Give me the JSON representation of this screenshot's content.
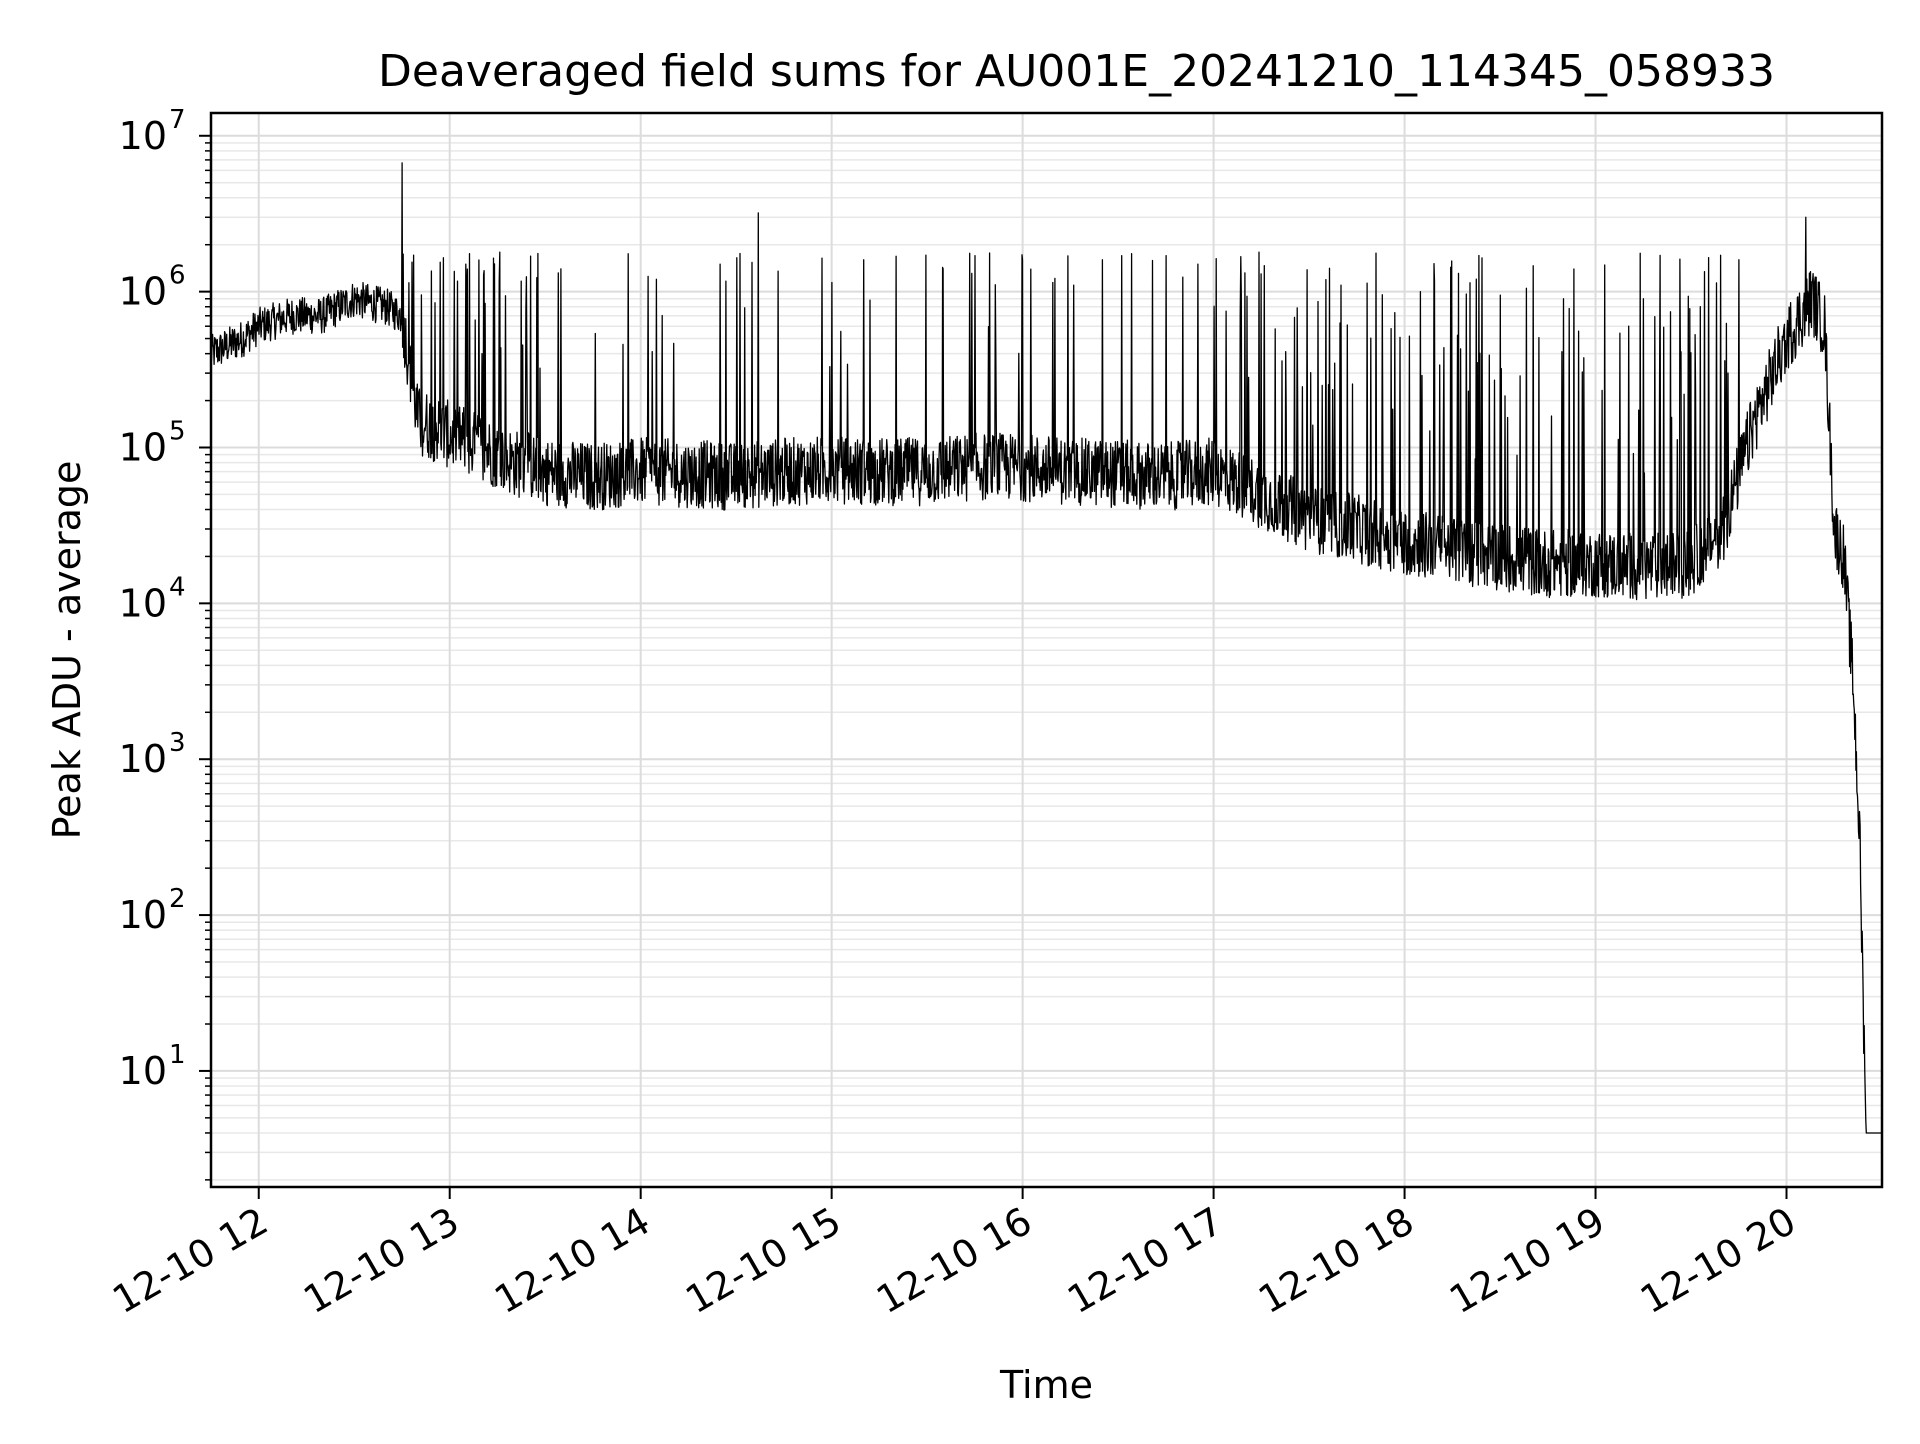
{
  "chart_data": {
    "type": "line",
    "title": "Deaveraged field sums for AU001E_20241210_114345_058933",
    "xlabel": "Time",
    "ylabel": "Peak ADU - average",
    "yscale": "log",
    "ylim": [
      1.8,
      14000000
    ],
    "xlim": [
      "2024-12-10 11:45",
      "2024-12-10 20:30"
    ],
    "grid": true,
    "line_color": "#000000",
    "x_ticks": [
      {
        "value": "2024-12-10 12:00",
        "label": "12-10 12"
      },
      {
        "value": "2024-12-10 13:00",
        "label": "12-10 13"
      },
      {
        "value": "2024-12-10 14:00",
        "label": "12-10 14"
      },
      {
        "value": "2024-12-10 15:00",
        "label": "12-10 15"
      },
      {
        "value": "2024-12-10 16:00",
        "label": "12-10 16"
      },
      {
        "value": "2024-12-10 17:00",
        "label": "12-10 17"
      },
      {
        "value": "2024-12-10 18:00",
        "label": "12-10 18"
      },
      {
        "value": "2024-12-10 19:00",
        "label": "12-10 19"
      },
      {
        "value": "2024-12-10 20:00",
        "label": "12-10 20"
      }
    ],
    "y_ticks": [
      {
        "value": 10,
        "base": "10",
        "exp": "1"
      },
      {
        "value": 100,
        "base": "10",
        "exp": "2"
      },
      {
        "value": 1000,
        "base": "10",
        "exp": "3"
      },
      {
        "value": 10000,
        "base": "10",
        "exp": "4"
      },
      {
        "value": 100000,
        "base": "10",
        "exp": "5"
      },
      {
        "value": 1000000,
        "base": "10",
        "exp": "6"
      },
      {
        "value": 10000000,
        "base": "10",
        "exp": "7"
      }
    ],
    "series": [
      {
        "x": [
          "2024-12-10 11:45",
          "2024-12-10 11:55",
          "2024-12-10 12:00",
          "2024-12-10 12:10",
          "2024-12-10 12:20",
          "2024-12-10 12:30",
          "2024-12-10 12:40",
          "2024-12-10 12:45",
          "2024-12-10 12:50",
          "2024-12-10 13:00",
          "2024-12-10 13:10",
          "2024-12-10 13:20",
          "2024-12-10 13:30",
          "2024-12-10 13:45",
          "2024-12-10 14:00",
          "2024-12-10 14:15",
          "2024-12-10 14:30",
          "2024-12-10 14:45",
          "2024-12-10 15:00",
          "2024-12-10 15:15",
          "2024-12-10 15:30",
          "2024-12-10 15:45",
          "2024-12-10 16:00",
          "2024-12-10 16:15",
          "2024-12-10 16:30",
          "2024-12-10 16:45",
          "2024-12-10 17:00",
          "2024-12-10 17:15",
          "2024-12-10 17:30",
          "2024-12-10 17:45",
          "2024-12-10 18:00",
          "2024-12-10 18:15",
          "2024-12-10 18:30",
          "2024-12-10 18:45",
          "2024-12-10 19:00",
          "2024-12-10 19:15",
          "2024-12-10 19:30",
          "2024-12-10 19:40",
          "2024-12-10 19:50",
          "2024-12-10 20:00",
          "2024-12-10 20:08",
          "2024-12-10 20:12",
          "2024-12-10 20:15",
          "2024-12-10 20:18",
          "2024-12-10 20:21",
          "2024-12-10 20:23",
          "2024-12-10 20:25",
          "2024-12-10 20:30"
        ],
        "y": [
          400000,
          500000,
          600000,
          700000,
          700000,
          900000,
          800000,
          700000,
          150000,
          120000,
          100000,
          80000,
          70000,
          65000,
          70000,
          68000,
          65000,
          70000,
          72000,
          70000,
          70000,
          75000,
          75000,
          70000,
          68000,
          65000,
          70000,
          50000,
          35000,
          30000,
          25000,
          22000,
          20000,
          18000,
          18000,
          17000,
          18000,
          30000,
          150000,
          500000,
          900000,
          600000,
          30000,
          20000,
          3000,
          300,
          4,
          4
        ],
        "spikes": [
          [
            "2024-12-10 12:45",
            6700000
          ],
          [
            "2024-12-10 13:05",
            1500000
          ],
          [
            "2024-12-10 13:35",
            1400000
          ],
          [
            "2024-12-10 14:05",
            1200000
          ],
          [
            "2024-12-10 14:25",
            1500000
          ],
          [
            "2024-12-10 14:37",
            3200000
          ],
          [
            "2024-12-10 15:10",
            1600000
          ],
          [
            "2024-12-10 15:35",
            1400000
          ],
          [
            "2024-12-10 15:45",
            1700000
          ],
          [
            "2024-12-10 16:00",
            1600000
          ],
          [
            "2024-12-10 16:25",
            1600000
          ],
          [
            "2024-12-10 16:45",
            1700000
          ],
          [
            "2024-12-10 16:55",
            1500000
          ],
          [
            "2024-12-10 17:15",
            1300000
          ],
          [
            "2024-12-10 17:40",
            1100000
          ],
          [
            "2024-12-10 18:05",
            1000000
          ],
          [
            "2024-12-10 18:30",
            950000
          ],
          [
            "2024-12-10 18:50",
            900000
          ],
          [
            "2024-12-10 19:15",
            900000
          ],
          [
            "2024-12-10 19:45",
            1600000
          ],
          [
            "2024-12-10 20:06",
            3000000
          ]
        ]
      }
    ]
  }
}
